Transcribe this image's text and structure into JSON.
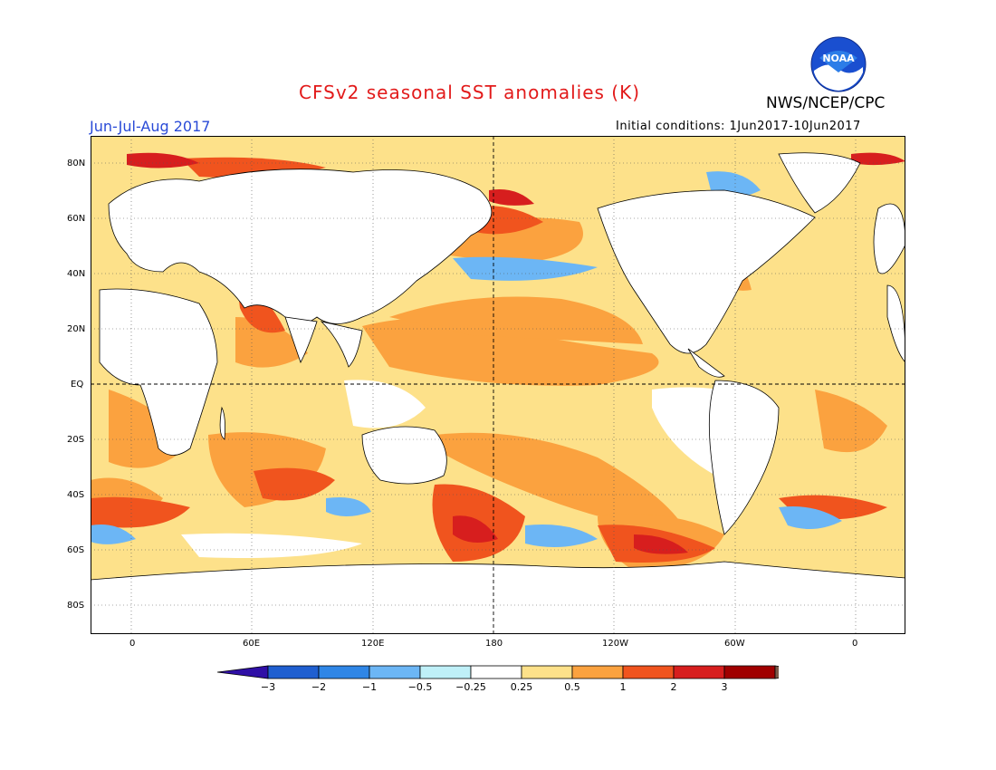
{
  "header": {
    "title": "CFSv2 seasonal SST anomalies (K)",
    "period": "Jun-Jul-Aug 2017",
    "agency": "NWS/NCEP/CPC",
    "initial_conditions": "Initial conditions: 1Jun2017-10Jun2017",
    "logo_text": "NOAA"
  },
  "map": {
    "lat_labels": [
      "80N",
      "60N",
      "40N",
      "20N",
      "EQ",
      "20S",
      "40S",
      "60S",
      "80S"
    ],
    "lon_labels": [
      "0",
      "60E",
      "120E",
      "180",
      "120W",
      "60W",
      "0"
    ]
  },
  "colorbar": {
    "labels": [
      "−3",
      "−2",
      "−1",
      "−0.5",
      "−0.25",
      "0.25",
      "0.5",
      "1",
      "2",
      "3"
    ],
    "colors": [
      "#2f0fa6",
      "#1f5fd0",
      "#2f86e6",
      "#6cb6f5",
      "#bff0f8",
      "#ffffff",
      "#fde18a",
      "#fba23f",
      "#f0541e",
      "#d71e1e",
      "#a00000",
      "#7a5a4a"
    ]
  }
}
